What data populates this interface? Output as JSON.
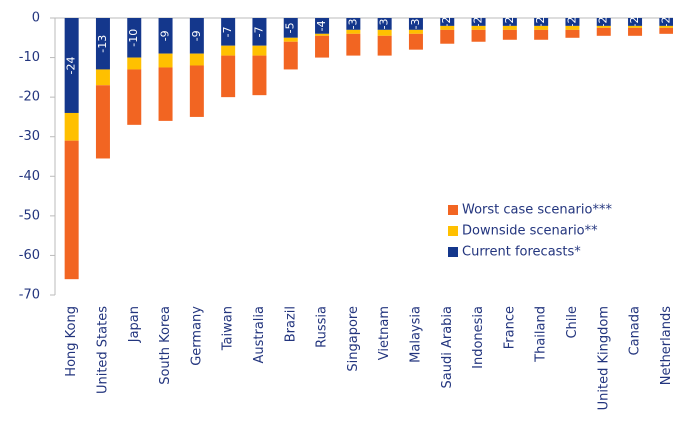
{
  "chart_data": {
    "type": "stacked-bar",
    "categories": [
      "Hong Kong",
      "United States",
      "Japan",
      "South Korea",
      "Germany",
      "Taiwan",
      "Australia",
      "Brazil",
      "Russia",
      "Singapore",
      "Vietnam",
      "Malaysia",
      "Saudi Arabia",
      "Indonesia",
      "France",
      "Thailand",
      "Chile",
      "United Kingdom",
      "Canada",
      "Netherlands"
    ],
    "series": [
      {
        "name": "Current forecasts*",
        "color": "#14378c",
        "values": [
          -24,
          -13,
          -10,
          -9,
          -9,
          -7,
          -7,
          -5,
          -4,
          -3,
          -3,
          -3,
          -2,
          -2,
          -2,
          -2,
          -2,
          -2,
          -2,
          -2
        ]
      },
      {
        "name": "Downside scenario**",
        "color": "#ffc000",
        "values": [
          -7,
          -4,
          -3,
          -3.5,
          -3,
          -2.5,
          -2.5,
          -1,
          -0.5,
          -1,
          -1.5,
          -1,
          -1,
          -1,
          -1,
          -1,
          -1,
          -0.5,
          -0.5,
          -0.5
        ]
      },
      {
        "name": "Worst case scenario***",
        "color": "#f26522",
        "values": [
          -35,
          -18.5,
          -14,
          -13.5,
          -13,
          -10.5,
          -10,
          -7,
          -5.5,
          -5.5,
          -5,
          -4,
          -3.5,
          -3,
          -2.5,
          -2.5,
          -2,
          -2,
          -2,
          -1.5
        ]
      }
    ],
    "ylim": [
      -70,
      0
    ],
    "yticks": [
      0,
      -10,
      -20,
      -30,
      -40,
      -50,
      -60,
      -70
    ],
    "legend": "center right"
  }
}
